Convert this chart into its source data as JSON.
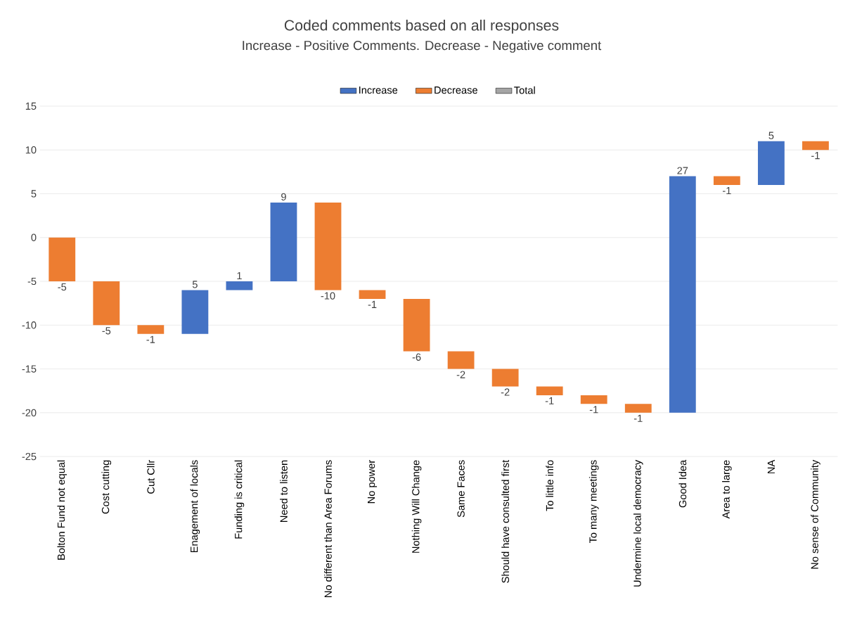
{
  "chart_data": {
    "type": "bar",
    "title": "Coded comments based on all responses",
    "subtitle": "Increase - Positive Comments. Decrease - Negative comment",
    "categories": [
      "Bolton Fund not equal",
      "Cost cutting",
      "Cut Cllr",
      "Enagement of locals",
      "Funding is critical",
      "Need to listen",
      "No different than Area Forums",
      "No power",
      "Nothing Will Change",
      "Same Faces",
      "Should have consulted first",
      "To little info",
      "To many meetings",
      "Undermine local democracy",
      "Good Idea",
      "Area to large",
      "NA",
      "No sense of Community"
    ],
    "series": [
      {
        "name": "Increase",
        "color": "#4472c4",
        "values": [
          null,
          null,
          null,
          5,
          1,
          9,
          null,
          null,
          null,
          null,
          null,
          null,
          null,
          null,
          27,
          null,
          5,
          null
        ],
        "base": [
          null,
          null,
          null,
          -11,
          -6,
          -5,
          null,
          null,
          null,
          null,
          null,
          null,
          null,
          null,
          -20,
          null,
          6,
          null
        ]
      },
      {
        "name": "Decrease",
        "color": "#ed7d31",
        "values": [
          -5,
          -5,
          -1,
          null,
          null,
          null,
          -10,
          -1,
          -6,
          -2,
          -2,
          -1,
          -1,
          -1,
          null,
          -1,
          null,
          -1
        ],
        "base": [
          0,
          -5,
          -10,
          null,
          null,
          null,
          4,
          -6,
          -7,
          -13,
          -15,
          -17,
          -18,
          -19,
          null,
          7,
          null,
          11
        ]
      },
      {
        "name": "Total",
        "color": "#a5a5a5",
        "values": [
          null,
          null,
          null,
          null,
          null,
          null,
          null,
          null,
          null,
          null,
          null,
          null,
          null,
          null,
          null,
          null,
          null,
          null
        ]
      }
    ],
    "ylim": [
      -25,
      15
    ],
    "yticks": [
      -25,
      -20,
      -15,
      -10,
      -5,
      0,
      5,
      10,
      15
    ],
    "grid": "y",
    "legend": "top",
    "data_labels": true
  }
}
